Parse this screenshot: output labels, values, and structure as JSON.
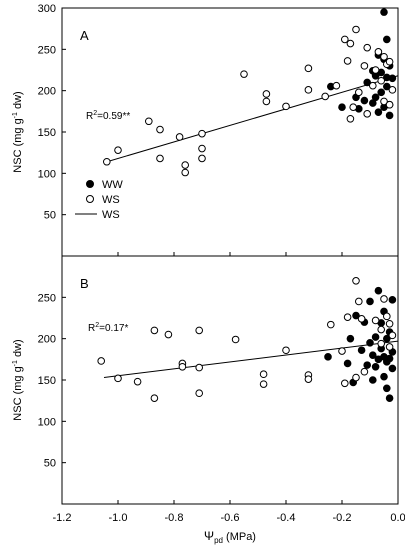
{
  "chart_data": [
    {
      "type": "scatter",
      "panel_label": "A",
      "ylabel_main": "NSC (mg g",
      "ylabel_sup": "-1",
      "ylabel_tail": " dw)",
      "xlim": [
        -1.2,
        0.0
      ],
      "ylim": [
        0,
        300
      ],
      "yticks": [
        0,
        50,
        100,
        150,
        200,
        250,
        300
      ],
      "ytick_labels": [
        "",
        "50",
        "100",
        "150",
        "200",
        "250",
        "300"
      ],
      "annotation_prefix": "R",
      "annotation_sup": "2",
      "annotation_suffix": "=0.59**",
      "legend": [
        "WW",
        "WS",
        "WS"
      ],
      "regression": {
        "x": [
          -1.05,
          0.0
        ],
        "y": [
          113,
          218
        ]
      },
      "series": [
        {
          "name": "WW",
          "marker": "filled",
          "points": [
            [
              -0.05,
              295
            ],
            [
              -0.04,
              262
            ],
            [
              -0.07,
              243
            ],
            [
              -0.05,
              238
            ],
            [
              -0.03,
              230
            ],
            [
              -0.09,
              224
            ],
            [
              -0.06,
              222
            ],
            [
              -0.08,
              218
            ],
            [
              -0.04,
              216
            ],
            [
              -0.11,
              210
            ],
            [
              -0.02,
              215
            ],
            [
              -0.04,
              205
            ],
            [
              -0.06,
              198
            ],
            [
              -0.15,
              192
            ],
            [
              -0.12,
              188
            ],
            [
              -0.2,
              180
            ],
            [
              -0.09,
              185
            ],
            [
              -0.03,
              183
            ],
            [
              -0.05,
              180
            ],
            [
              -0.14,
              178
            ],
            [
              -0.07,
              174
            ],
            [
              -0.03,
              170
            ],
            [
              -0.08,
              192
            ],
            [
              -0.24,
              205
            ]
          ]
        },
        {
          "name": "WS",
          "marker": "open",
          "points": [
            [
              -1.04,
              114
            ],
            [
              -1.0,
              128
            ],
            [
              -0.89,
              163
            ],
            [
              -0.85,
              153
            ],
            [
              -0.85,
              118
            ],
            [
              -0.78,
              144
            ],
            [
              -0.76,
              110
            ],
            [
              -0.76,
              101
            ],
            [
              -0.7,
              148
            ],
            [
              -0.7,
              130
            ],
            [
              -0.7,
              118
            ],
            [
              -0.55,
              220
            ],
            [
              -0.47,
              196
            ],
            [
              -0.47,
              187
            ],
            [
              -0.4,
              181
            ],
            [
              -0.32,
              227
            ],
            [
              -0.32,
              201
            ],
            [
              -0.26,
              193
            ],
            [
              -0.22,
              206
            ],
            [
              -0.19,
              262
            ],
            [
              -0.17,
              257
            ],
            [
              -0.15,
              274
            ],
            [
              -0.11,
              252
            ],
            [
              -0.07,
              247
            ],
            [
              -0.05,
              241
            ],
            [
              -0.04,
              232
            ],
            [
              -0.03,
              235
            ],
            [
              -0.08,
              225
            ],
            [
              -0.12,
              230
            ],
            [
              -0.18,
              236
            ],
            [
              -0.14,
              198
            ],
            [
              -0.16,
              180
            ],
            [
              -0.05,
              187
            ],
            [
              -0.11,
              172
            ],
            [
              -0.17,
              166
            ],
            [
              -0.03,
              183
            ],
            [
              -0.06,
              212
            ],
            [
              -0.09,
              206
            ],
            [
              -0.02,
              201
            ]
          ]
        }
      ]
    },
    {
      "type": "scatter",
      "panel_label": "B",
      "xlabel_main": "Ψ",
      "xlabel_sub": "pd",
      "xlabel_tail": " (MPa)",
      "ylabel_main": "NSC (mg g",
      "ylabel_sup": "-1",
      "ylabel_tail": " dw)",
      "xlim": [
        -1.2,
        0.0
      ],
      "ylim": [
        0,
        300
      ],
      "xticks": [
        -1.2,
        -1.0,
        -0.8,
        -0.6,
        -0.4,
        -0.2,
        0.0
      ],
      "xtick_labels": [
        "-1.2",
        "-1.0",
        "-0.8",
        "-0.6",
        "-0.4",
        "-0.2",
        "0.0"
      ],
      "yticks": [
        0,
        50,
        100,
        150,
        200,
        250,
        300
      ],
      "ytick_labels": [
        "",
        "50",
        "100",
        "150",
        "200",
        "250",
        ""
      ],
      "annotation_prefix": "R",
      "annotation_sup": "2",
      "annotation_suffix": "=0.17*",
      "regression": {
        "x": [
          -1.05,
          0.0
        ],
        "y": [
          153,
          197
        ]
      },
      "series": [
        {
          "name": "WW",
          "marker": "filled",
          "points": [
            [
              -0.07,
              258
            ],
            [
              -0.02,
              247
            ],
            [
              -0.1,
              245
            ],
            [
              -0.05,
              233
            ],
            [
              -0.15,
              228
            ],
            [
              -0.12,
              220
            ],
            [
              -0.06,
              219
            ],
            [
              -0.03,
              208
            ],
            [
              -0.08,
              202
            ],
            [
              -0.04,
              200
            ],
            [
              -0.17,
              200
            ],
            [
              -0.1,
              195
            ],
            [
              -0.06,
              188
            ],
            [
              -0.13,
              186
            ],
            [
              -0.02,
              184
            ],
            [
              -0.09,
              180
            ],
            [
              -0.05,
              178
            ],
            [
              -0.03,
              176
            ],
            [
              -0.07,
              175
            ],
            [
              -0.04,
              172
            ],
            [
              -0.18,
              170
            ],
            [
              -0.11,
              168
            ],
            [
              -0.08,
              166
            ],
            [
              -0.02,
              164
            ],
            [
              -0.05,
              154
            ],
            [
              -0.09,
              150
            ],
            [
              -0.16,
              147
            ],
            [
              -0.04,
              140
            ],
            [
              -0.03,
              128
            ],
            [
              -0.25,
              178
            ]
          ]
        },
        {
          "name": "WS",
          "marker": "open",
          "points": [
            [
              -1.06,
              173
            ],
            [
              -1.0,
              152
            ],
            [
              -0.93,
              148
            ],
            [
              -0.87,
              210
            ],
            [
              -0.87,
              128
            ],
            [
              -0.82,
              205
            ],
            [
              -0.77,
              170
            ],
            [
              -0.77,
              166
            ],
            [
              -0.71,
              210
            ],
            [
              -0.71,
              165
            ],
            [
              -0.71,
              134
            ],
            [
              -0.58,
              199
            ],
            [
              -0.48,
              157
            ],
            [
              -0.48,
              145
            ],
            [
              -0.4,
              186
            ],
            [
              -0.32,
              156
            ],
            [
              -0.32,
              151
            ],
            [
              -0.24,
              217
            ],
            [
              -0.2,
              185
            ],
            [
              -0.18,
              226
            ],
            [
              -0.15,
              270
            ],
            [
              -0.14,
              245
            ],
            [
              -0.08,
              222
            ],
            [
              -0.05,
              248
            ],
            [
              -0.04,
              227
            ],
            [
              -0.03,
              218
            ],
            [
              -0.06,
              211
            ],
            [
              -0.02,
              204
            ],
            [
              -0.13,
              224
            ],
            [
              -0.19,
              146
            ],
            [
              -0.15,
              153
            ],
            [
              -0.12,
              160
            ],
            [
              -0.06,
              194
            ],
            [
              -0.03,
              190
            ]
          ]
        }
      ]
    }
  ]
}
